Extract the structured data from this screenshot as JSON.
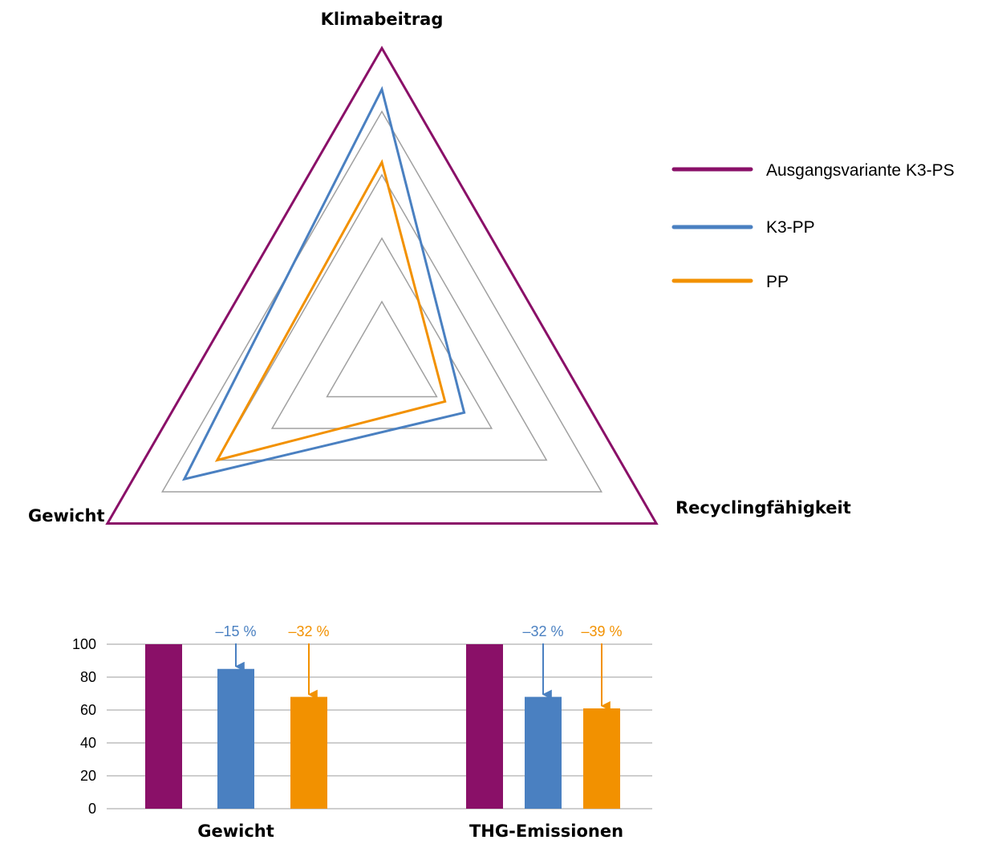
{
  "colors": {
    "ausgang": "#8a1068",
    "k3pp": "#4a80c1",
    "pp": "#f29100",
    "grid": "#a0a0a0",
    "bar_grid": "#b0b0b0"
  },
  "chart_data": [
    {
      "type": "radar",
      "axes": [
        "Klimabeitrag",
        "Recyclingfähigkeit",
        "Gewicht"
      ],
      "rlim": [
        0,
        100
      ],
      "grid_levels": [
        20,
        40,
        60,
        80,
        100
      ],
      "series": [
        {
          "name": "Ausgangsvariante K3-PS",
          "color_key": "ausgang",
          "values": [
            100,
            100,
            100
          ]
        },
        {
          "name": "K3-PP",
          "color_key": "k3pp",
          "values": [
            87,
            30,
            72
          ]
        },
        {
          "name": "PP",
          "color_key": "pp",
          "values": [
            64,
            23,
            60
          ]
        }
      ],
      "legend_position": "right"
    },
    {
      "type": "bar",
      "categories": [
        "Gewicht",
        "THG-Emissionen"
      ],
      "ylim": [
        0,
        100
      ],
      "yticks": [
        0,
        20,
        40,
        60,
        80,
        100
      ],
      "series": [
        {
          "name": "Ausgangsvariante K3-PS",
          "color_key": "ausgang",
          "values": [
            100,
            100
          ]
        },
        {
          "name": "K3-PP",
          "color_key": "k3pp",
          "values": [
            85,
            68
          ]
        },
        {
          "name": "PP",
          "color_key": "pp",
          "values": [
            68,
            61
          ]
        }
      ],
      "annotations": [
        {
          "category": 0,
          "series": 1,
          "text": "–15 %"
        },
        {
          "category": 0,
          "series": 2,
          "text": "–32 %"
        },
        {
          "category": 1,
          "series": 1,
          "text": "–32 %"
        },
        {
          "category": 1,
          "series": 2,
          "text": "–39 %"
        }
      ]
    }
  ]
}
